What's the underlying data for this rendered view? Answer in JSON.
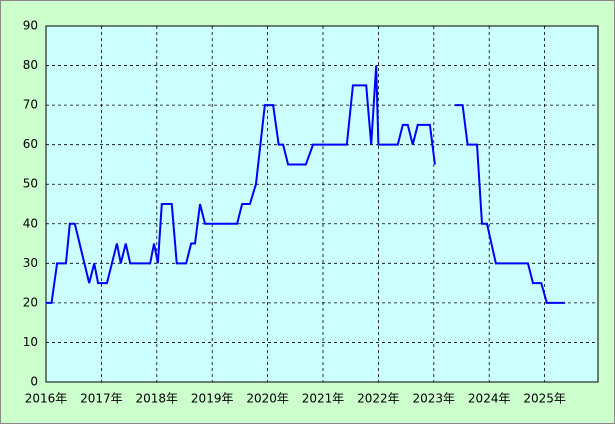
{
  "chart_data": {
    "type": "line",
    "x": [
      2016.0,
      2016.1,
      2016.2,
      2016.36,
      2016.43,
      2016.52,
      2016.78,
      2016.87,
      2016.94,
      2017.1,
      2017.28,
      2017.35,
      2017.44,
      2017.52,
      2017.88,
      2017.95,
      2018.02,
      2018.09,
      2018.27,
      2018.36,
      2018.53,
      2018.62,
      2018.69,
      2018.78,
      2018.87,
      2019.45,
      2019.54,
      2019.68,
      2019.79,
      2019.95,
      2020.1,
      2020.2,
      2020.28,
      2020.37,
      2020.69,
      2020.82,
      2021.43,
      2021.54,
      2021.78,
      2021.87,
      2021.96,
      2022.0,
      2022.35,
      2022.44,
      2022.53,
      2022.62,
      2022.71,
      2022.93,
      2023.02,
      2023.2,
      2023.38,
      2023.52,
      2023.61,
      2023.78,
      2023.87,
      2023.96,
      2024.12,
      2024.7,
      2024.79,
      2024.94,
      2025.04,
      2025.37
    ],
    "series": [
      {
        "color": "#0000ff",
        "values": [
          20,
          20,
          30,
          30,
          40,
          40,
          25,
          30,
          25,
          25,
          35,
          30,
          35,
          30,
          30,
          35,
          30,
          45,
          45,
          30,
          30,
          35,
          35,
          45,
          40,
          40,
          45,
          45,
          50,
          70,
          70,
          60,
          60,
          55,
          55,
          60,
          60,
          75,
          75,
          60,
          80,
          60,
          60,
          65,
          65,
          60,
          65,
          65,
          55,
          null,
          70,
          70,
          60,
          60,
          40,
          40,
          30,
          30,
          25,
          25,
          20,
          20
        ]
      }
    ],
    "xlim": [
      2016,
      2026
    ],
    "xticks": [
      {
        "value": 2016,
        "label": "2016年"
      },
      {
        "value": 2017,
        "label": "2017年"
      },
      {
        "value": 2018,
        "label": "2018年"
      },
      {
        "value": 2019,
        "label": "2019年"
      },
      {
        "value": 2020,
        "label": "2020年"
      },
      {
        "value": 2021,
        "label": "2021年"
      },
      {
        "value": 2022,
        "label": "2022年"
      },
      {
        "value": 2023,
        "label": "2023年"
      },
      {
        "value": 2024,
        "label": "2024年"
      },
      {
        "value": 2025,
        "label": "2025年"
      }
    ],
    "ylim": [
      0,
      90
    ],
    "yticks": [
      0,
      10,
      20,
      30,
      40,
      50,
      60,
      70,
      80,
      90
    ],
    "grid": true
  }
}
